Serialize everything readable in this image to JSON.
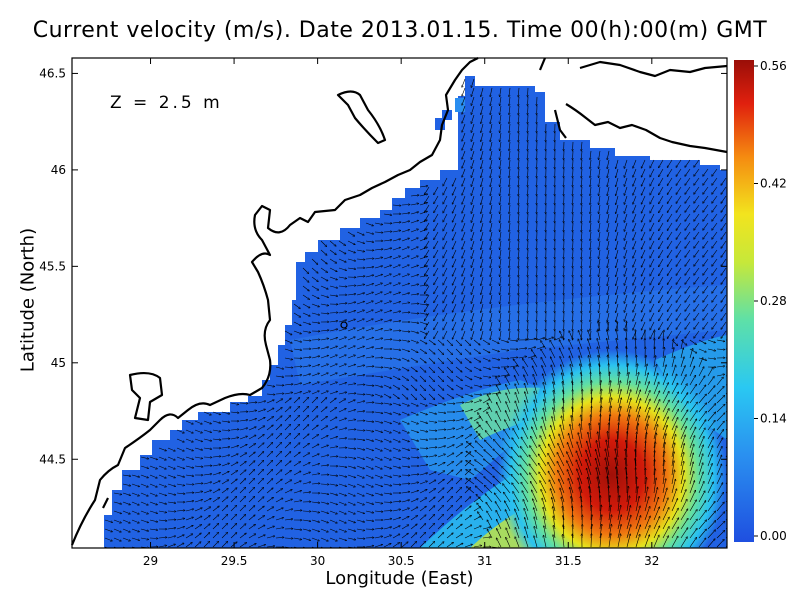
{
  "figure": {
    "title": "Current velocity (m/s). Date 2013.01.15. Time 00(h):00(m) GMT",
    "xlabel": "Longitude (East)",
    "ylabel": "Latitude (North)",
    "depth_label": "Z = 2.5 m"
  },
  "axes": {
    "x_ticks": [
      "29",
      "29.5",
      "30",
      "30.5",
      "31",
      "31.5",
      "32"
    ],
    "x_tick_values": [
      29,
      29.5,
      30,
      30.5,
      31,
      31.5,
      32
    ],
    "y_ticks": [
      "46.5",
      "46",
      "45.5",
      "45",
      "44.5"
    ],
    "y_tick_values": [
      46.5,
      46,
      45.5,
      45,
      44.5
    ],
    "xlim": [
      28.53,
      32.45
    ],
    "ylim": [
      44.04,
      46.58
    ]
  },
  "colorbar": {
    "ticks": [
      "0.56",
      "0.42",
      "0.28",
      "0.14",
      "0.00"
    ],
    "tick_values": [
      0.56,
      0.42,
      0.28,
      0.14,
      0.0
    ],
    "range": [
      0,
      0.56
    ],
    "colors": [
      "#1f5de6",
      "#2a8ef0",
      "#29c8f2",
      "#5ee0b0",
      "#c8e63c",
      "#f0e020",
      "#f58a10",
      "#e02010",
      "#a01008"
    ]
  },
  "style": {
    "land_color": "#ffffff",
    "coast_color": "#000000",
    "water_base": "#2060e0",
    "arrow_color": "#000000"
  }
}
